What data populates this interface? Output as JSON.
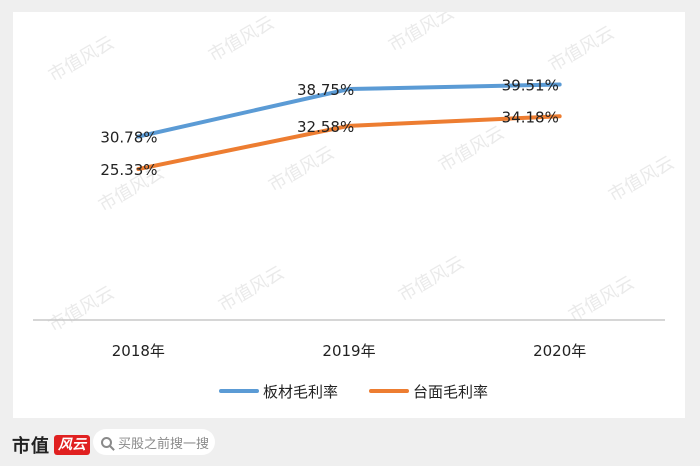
{
  "chart_data": {
    "type": "line",
    "categories": [
      "2018年",
      "2019年",
      "2020年"
    ],
    "series": [
      {
        "name": "板材毛利率",
        "values": [
          30.78,
          38.75,
          39.51
        ],
        "labels": [
          "30.78%",
          "38.75%",
          "39.51%"
        ],
        "color": "#5b9bd5"
      },
      {
        "name": "台面毛利率",
        "values": [
          25.33,
          32.58,
          34.18
        ],
        "labels": [
          "25.33%",
          "32.58%",
          "34.18%"
        ],
        "color": "#ed7d31"
      }
    ],
    "ylim": [
      0,
      50
    ],
    "grid": false,
    "legend_position": "bottom"
  },
  "watermark_text": "市值风云",
  "footer": {
    "brand": "市值",
    "brand_seal": "风云",
    "search_placeholder": "买股之前搜一搜",
    "search_icon": "search-icon"
  }
}
